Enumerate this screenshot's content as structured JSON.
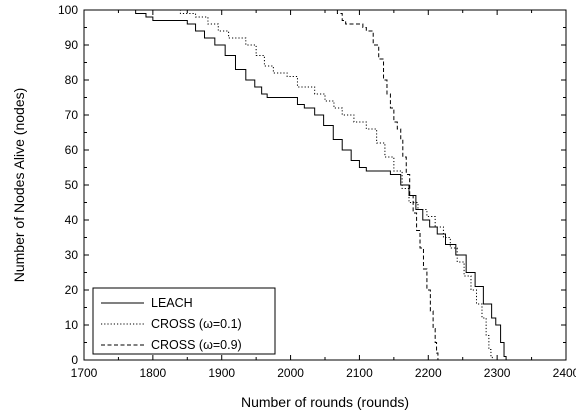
{
  "chart_data": {
    "type": "line",
    "title": "",
    "xlabel": "Number of rounds  (rounds)",
    "ylabel": "Number of Nodes Alive  (nodes)",
    "xlim": [
      1700,
      2400
    ],
    "ylim": [
      0,
      100
    ],
    "x_ticks": [
      1700,
      1800,
      1900,
      2000,
      2100,
      2200,
      2300,
      2400
    ],
    "y_ticks": [
      0,
      10,
      20,
      30,
      40,
      50,
      60,
      70,
      80,
      90,
      100
    ],
    "grid": false,
    "legend_position": "bottom-left",
    "series": [
      {
        "name": "LEACH",
        "style": "solid",
        "color": "#000000",
        "points": [
          [
            1700,
            100
          ],
          [
            1765,
            100
          ],
          [
            1775,
            99
          ],
          [
            1790,
            98
          ],
          [
            1800,
            97
          ],
          [
            1830,
            97
          ],
          [
            1850,
            96
          ],
          [
            1862,
            94
          ],
          [
            1875,
            92
          ],
          [
            1890,
            90
          ],
          [
            1905,
            87
          ],
          [
            1920,
            83
          ],
          [
            1935,
            80
          ],
          [
            1948,
            78
          ],
          [
            1958,
            76
          ],
          [
            1966,
            75
          ],
          [
            2000,
            75
          ],
          [
            2010,
            73
          ],
          [
            2020,
            72
          ],
          [
            2035,
            70
          ],
          [
            2048,
            67
          ],
          [
            2062,
            63
          ],
          [
            2075,
            60
          ],
          [
            2088,
            57
          ],
          [
            2100,
            55
          ],
          [
            2110,
            54
          ],
          [
            2130,
            54
          ],
          [
            2145,
            53
          ],
          [
            2160,
            50
          ],
          [
            2172,
            47
          ],
          [
            2182,
            43
          ],
          [
            2192,
            40
          ],
          [
            2202,
            38
          ],
          [
            2213,
            36
          ],
          [
            2225,
            33
          ],
          [
            2240,
            30
          ],
          [
            2255,
            25
          ],
          [
            2268,
            21
          ],
          [
            2280,
            16
          ],
          [
            2292,
            12
          ],
          [
            2298,
            10
          ],
          [
            2305,
            5
          ],
          [
            2310,
            1
          ],
          [
            2313,
            0
          ],
          [
            2400,
            0
          ]
        ]
      },
      {
        "name": "CROSS (ω=0.1)",
        "style": "dotted",
        "color": "#000000",
        "points": [
          [
            1700,
            100
          ],
          [
            1820,
            100
          ],
          [
            1840,
            99
          ],
          [
            1862,
            98
          ],
          [
            1880,
            96
          ],
          [
            1895,
            94
          ],
          [
            1910,
            92
          ],
          [
            1935,
            90
          ],
          [
            1950,
            87
          ],
          [
            1962,
            84
          ],
          [
            1975,
            82
          ],
          [
            1995,
            81
          ],
          [
            2010,
            78
          ],
          [
            2035,
            76
          ],
          [
            2050,
            74
          ],
          [
            2063,
            72
          ],
          [
            2075,
            70
          ],
          [
            2092,
            68
          ],
          [
            2110,
            66
          ],
          [
            2125,
            62
          ],
          [
            2137,
            58
          ],
          [
            2150,
            54
          ],
          [
            2162,
            49
          ],
          [
            2172,
            45
          ],
          [
            2185,
            43
          ],
          [
            2198,
            41
          ],
          [
            2210,
            38
          ],
          [
            2222,
            35
          ],
          [
            2232,
            32
          ],
          [
            2242,
            28
          ],
          [
            2252,
            24
          ],
          [
            2262,
            20
          ],
          [
            2270,
            16
          ],
          [
            2278,
            12
          ],
          [
            2284,
            7
          ],
          [
            2288,
            3
          ],
          [
            2291,
            1
          ],
          [
            2293,
            0
          ],
          [
            2400,
            0
          ]
        ]
      },
      {
        "name": "CROSS (ω=0.9)",
        "style": "dashed",
        "color": "#000000",
        "points": [
          [
            1700,
            100
          ],
          [
            2065,
            100
          ],
          [
            2068,
            99
          ],
          [
            2075,
            97
          ],
          [
            2080,
            96
          ],
          [
            2098,
            96
          ],
          [
            2105,
            95
          ],
          [
            2110,
            94
          ],
          [
            2120,
            90
          ],
          [
            2128,
            86
          ],
          [
            2135,
            80
          ],
          [
            2140,
            76
          ],
          [
            2145,
            72
          ],
          [
            2150,
            68
          ],
          [
            2155,
            66
          ],
          [
            2160,
            63
          ],
          [
            2163,
            58
          ],
          [
            2168,
            53
          ],
          [
            2173,
            47
          ],
          [
            2178,
            42
          ],
          [
            2183,
            37
          ],
          [
            2188,
            32
          ],
          [
            2193,
            26
          ],
          [
            2198,
            20
          ],
          [
            2203,
            14
          ],
          [
            2207,
            9
          ],
          [
            2210,
            5
          ],
          [
            2212,
            2
          ],
          [
            2214,
            0
          ],
          [
            2400,
            0
          ]
        ]
      }
    ]
  }
}
